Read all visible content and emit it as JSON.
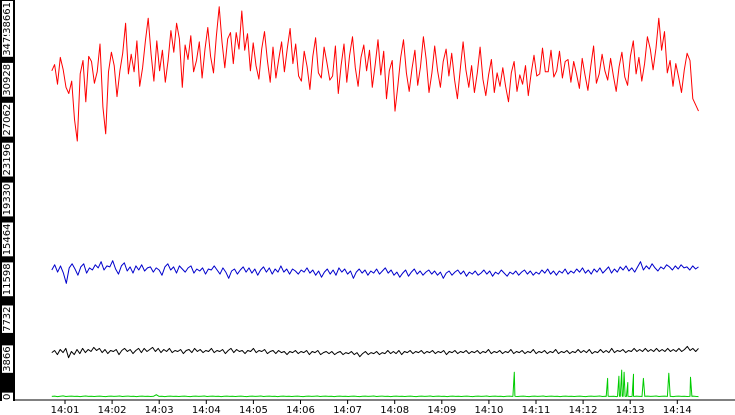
{
  "chart_data": {
    "type": "line",
    "x_tick_labels": [
      "14:01",
      "14:02",
      "14:03",
      "14:04",
      "14:05",
      "14:06",
      "14:07",
      "14:08",
      "14:09",
      "14:10",
      "14:11",
      "14:12",
      "14:13",
      "14:14"
    ],
    "y_tick_labels": [
      "0",
      "3866",
      "7732",
      "11598",
      "15464",
      "19330",
      "23196",
      "27062",
      "30928",
      "34794",
      "38661"
    ],
    "ylim": [
      0,
      38661
    ],
    "x_start_minutes_before_first_tick": 0.28,
    "x_end_minutes_after_last_tick": 0.45,
    "grid": false,
    "legend": "none",
    "series": [
      {
        "color": "#ff0000",
        "values": [
          31800,
          32400,
          30500,
          33100,
          31900,
          30200,
          29600,
          30800,
          27100,
          25000,
          31500,
          32800,
          28800,
          33200,
          32700,
          30600,
          31700,
          34400,
          28300,
          25700,
          31700,
          33600,
          32300,
          29300,
          31800,
          33500,
          36400,
          31500,
          33400,
          31700,
          34700,
          30300,
          32100,
          34700,
          36900,
          33400,
          30800,
          34700,
          31800,
          33800,
          30700,
          32800,
          35700,
          33600,
          36400,
          34900,
          30200,
          34300,
          32900,
          35200,
          31700,
          32800,
          34600,
          31100,
          33900,
          36000,
          33200,
          31600,
          35100,
          38000,
          34600,
          32100,
          34900,
          35500,
          32500,
          35500,
          33900,
          37600,
          33800,
          35400,
          31800,
          34500,
          32300,
          31000,
          33900,
          35600,
          32800,
          30700,
          34100,
          31100,
          32900,
          34600,
          31700,
          33900,
          35900,
          32500,
          34400,
          31300,
          30800,
          33700,
          32200,
          30000,
          33200,
          35000,
          31600,
          31100,
          34100,
          32600,
          30900,
          31300,
          34200,
          29600,
          32300,
          34400,
          30700,
          33300,
          35100,
          32100,
          30300,
          33100,
          34300,
          31800,
          33800,
          30200,
          32400,
          34800,
          31400,
          33700,
          29100,
          31800,
          32800,
          27900,
          30300,
          33100,
          34800,
          31600,
          29800,
          32000,
          33800,
          30400,
          32200,
          35100,
          32900,
          29700,
          31600,
          34200,
          31800,
          30200,
          32700,
          33900,
          31300,
          33500,
          30900,
          29100,
          31900,
          34600,
          31900,
          30200,
          32300,
          29700,
          31600,
          34100,
          31000,
          29400,
          31400,
          32900,
          29700,
          31600,
          30300,
          32100,
          30300,
          28800,
          31600,
          32700,
          29800,
          31400,
          30500,
          32300,
          29400,
          31600,
          33300,
          31300,
          31500,
          34000,
          31700,
          31700,
          33800,
          31200,
          31800,
          33700,
          31100,
          32700,
          32900,
          30700,
          32700,
          31500,
          30100,
          33000,
          31400,
          29900,
          32200,
          34200,
          30600,
          31500,
          33400,
          31800,
          30900,
          33000,
          31300,
          29800,
          32200,
          33600,
          31200,
          30400,
          33200,
          34700,
          31500,
          33100,
          30800,
          32500,
          35100,
          33900,
          31900,
          34000,
          36900,
          33800,
          35600,
          31600,
          32800,
          30300,
          32500,
          31200,
          29700,
          31900,
          33500,
          32800,
          29100,
          28500,
          27900
        ]
      },
      {
        "color": "#0000cc",
        "values": [
          12500,
          13000,
          12300,
          12900,
          12200,
          11200,
          12700,
          13100,
          12600,
          12000,
          12800,
          13100,
          12200,
          12700,
          12500,
          13000,
          12700,
          13300,
          12500,
          12900,
          12800,
          13400,
          12600,
          12100,
          12900,
          13200,
          12400,
          12800,
          12200,
          12900,
          12500,
          13000,
          12400,
          12700,
          12800,
          12300,
          12700,
          12500,
          12000,
          12800,
          13100,
          12500,
          12800,
          12200,
          12900,
          12600,
          12300,
          12700,
          12900,
          12200,
          12600,
          12400,
          12700,
          12100,
          12600,
          12500,
          12900,
          12500,
          12100,
          12700,
          12300,
          11700,
          12400,
          12600,
          12100,
          12500,
          12800,
          12300,
          12700,
          12200,
          12600,
          12000,
          12500,
          12800,
          12300,
          12700,
          12100,
          12600,
          12300,
          12900,
          12300,
          12600,
          12100,
          12600,
          12400,
          12100,
          12500,
          12300,
          12700,
          12200,
          12500,
          12000,
          12400,
          11800,
          12300,
          12600,
          12100,
          12500,
          12000,
          12700,
          12300,
          12600,
          12100,
          12400,
          11700,
          12300,
          12600,
          12200,
          12500,
          12000,
          12400,
          12200,
          12600,
          12100,
          12400,
          12700,
          12200,
          12500,
          12000,
          12300,
          11800,
          12200,
          12500,
          11900,
          12300,
          12600,
          12100,
          12400,
          12000,
          12300,
          12500,
          12100,
          12400,
          12000,
          12300,
          11700,
          12200,
          12400,
          12000,
          12300,
          12500,
          12100,
          12400,
          11900,
          12300,
          12100,
          12400,
          12000,
          12200,
          12500,
          12100,
          12400,
          11900,
          12300,
          12100,
          12500,
          12200,
          11900,
          12300,
          12100,
          12400,
          12000,
          12300,
          12500,
          12100,
          12400,
          12000,
          12300,
          12100,
          12500,
          12200,
          12600,
          12100,
          12400,
          12000,
          12400,
          12200,
          12600,
          12100,
          12400,
          12200,
          12600,
          12300,
          12700,
          12200,
          12500,
          12100,
          12600,
          12300,
          12700,
          12200,
          12500,
          12800,
          12200,
          12600,
          12300,
          12800,
          12500,
          12900,
          12400,
          12700,
          12300,
          12800,
          13300,
          12500,
          12900,
          12600,
          13100,
          12700,
          12400,
          12800,
          12600,
          13000,
          12800,
          12500,
          12900,
          12600,
          13000,
          12700,
          12800,
          12500,
          12900,
          12600,
          12800
        ]
      },
      {
        "color": "#000000",
        "values": [
          4500,
          4700,
          4300,
          4800,
          4500,
          4900,
          4000,
          4600,
          4300,
          4800,
          4400,
          4900,
          4500,
          4800,
          4600,
          5000,
          4700,
          4900,
          4500,
          4800,
          4400,
          4700,
          4600,
          4800,
          4300,
          4700,
          4900,
          4600,
          4800,
          4400,
          4700,
          4900,
          4500,
          4900,
          4600,
          4800,
          5000,
          4600,
          4900,
          4500,
          4800,
          4600,
          4900,
          4500,
          4700,
          4600,
          4800,
          4400,
          4700,
          4800,
          4500,
          4900,
          4600,
          4800,
          4500,
          4700,
          4600,
          4900,
          4500,
          4700,
          4600,
          4800,
          4400,
          4700,
          4900,
          4500,
          4800,
          4600,
          4700,
          4400,
          4700,
          4600,
          4900,
          4500,
          4700,
          4600,
          4800,
          4400,
          4600,
          4700,
          4400,
          4700,
          4500,
          4600,
          4300,
          4600,
          4500,
          4700,
          4400,
          4600,
          4500,
          4700,
          4300,
          4600,
          4500,
          4700,
          4300,
          4500,
          4600,
          4400,
          4600,
          4300,
          4500,
          4600,
          4300,
          4500,
          4400,
          4600,
          4300,
          4500,
          4100,
          4400,
          4600,
          4300,
          4500,
          4400,
          4600,
          4300,
          4500,
          4400,
          4700,
          4400,
          4600,
          4400,
          4700,
          4300,
          4600,
          4500,
          4700,
          4400,
          4600,
          4500,
          4700,
          4400,
          4600,
          4500,
          4700,
          4400,
          4600,
          4500,
          4700,
          4300,
          4600,
          4500,
          4700,
          4400,
          4600,
          4500,
          4700,
          4400,
          4600,
          4500,
          4700,
          4400,
          4600,
          4500,
          4800,
          4400,
          4600,
          4500,
          4700,
          4400,
          4600,
          4500,
          4800,
          4400,
          4600,
          4500,
          4700,
          4400,
          4600,
          4500,
          4800,
          4400,
          4600,
          4500,
          4700,
          4400,
          4600,
          4500,
          4800,
          4400,
          4600,
          4500,
          4700,
          4400,
          4600,
          4500,
          4800,
          4500,
          4700,
          4500,
          4800,
          4400,
          4600,
          4500,
          4800,
          4500,
          4700,
          4500,
          4900,
          4500,
          4700,
          4600,
          4800,
          4500,
          4700,
          4600,
          4900,
          4600,
          4800,
          4600,
          4900,
          4600,
          4800,
          4600,
          4900,
          4600,
          4800,
          4600,
          4900,
          4600,
          4800,
          4600,
          4900,
          4600,
          4800,
          5100,
          4700,
          4900,
          4600,
          4900
        ]
      },
      {
        "color": "#00cc00",
        "values": [
          250,
          280,
          230,
          270,
          300,
          240,
          260,
          280,
          250,
          270,
          230,
          260,
          290,
          250,
          270,
          240,
          260,
          280,
          250,
          230,
          260,
          280,
          250,
          270,
          290,
          240,
          260,
          280,
          250,
          270,
          230,
          260,
          280,
          250,
          270,
          240,
          260,
          420,
          250,
          270,
          230,
          260,
          280,
          250,
          270,
          240,
          260,
          280,
          250,
          230,
          260,
          280,
          250,
          270,
          290,
          240,
          260,
          280,
          250,
          270,
          230,
          260,
          280,
          250,
          270,
          240,
          260,
          280,
          250,
          230,
          260,
          280,
          250,
          270,
          290,
          240,
          260,
          280,
          250,
          270,
          230,
          260,
          280,
          250,
          270,
          240,
          260,
          280,
          250,
          230,
          260,
          280,
          250,
          270,
          290,
          240,
          260,
          280,
          250,
          270,
          230,
          260,
          280,
          250,
          270,
          240,
          260,
          280,
          250,
          230,
          260,
          280,
          250,
          270,
          290,
          240,
          260,
          280,
          250,
          270,
          230,
          260,
          280,
          250,
          270,
          240,
          260,
          280,
          250,
          230,
          260,
          280,
          250,
          270,
          290,
          240,
          260,
          280,
          250,
          270,
          230,
          260,
          280,
          250,
          270,
          240,
          260,
          280,
          250,
          230,
          260,
          280,
          250,
          270,
          290,
          240,
          260,
          280,
          250,
          270,
          230,
          260,
          280,
          250,
          270,
          240,
          260,
          280,
          250,
          230,
          260,
          280,
          250,
          270,
          290,
          240,
          260,
          280,
          250,
          270,
          230,
          260,
          280,
          250,
          270,
          240,
          260,
          280,
          250,
          230,
          260,
          280,
          250,
          270,
          290,
          240,
          260,
          280,
          250,
          270,
          230,
          260,
          280,
          250,
          270,
          240,
          260,
          280,
          250,
          230,
          260,
          280,
          250,
          270,
          290,
          240,
          260,
          280,
          250,
          270,
          230,
          260,
          280,
          250,
          270,
          240,
          260,
          280,
          250,
          230
        ],
        "spikes": [
          {
            "x_minutes_from_first_tick": 9.54,
            "value": 2600
          },
          {
            "x_minutes_from_first_tick": 11.52,
            "value": 2000
          },
          {
            "x_minutes_from_first_tick": 11.76,
            "value": 2200
          },
          {
            "x_minutes_from_first_tick": 11.82,
            "value": 2800
          },
          {
            "x_minutes_from_first_tick": 11.87,
            "value": 2600
          },
          {
            "x_minutes_from_first_tick": 11.95,
            "value": 1600
          },
          {
            "x_minutes_from_first_tick": 12.07,
            "value": 2400
          },
          {
            "x_minutes_from_first_tick": 12.28,
            "value": 2000
          },
          {
            "x_minutes_from_first_tick": 12.82,
            "value": 2500
          },
          {
            "x_minutes_from_first_tick": 13.28,
            "value": 2100
          }
        ]
      }
    ]
  }
}
